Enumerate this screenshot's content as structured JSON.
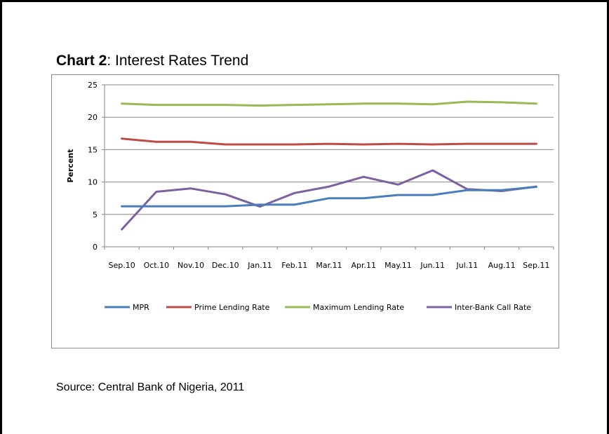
{
  "title": {
    "bold_part": "Chart 2",
    "rest": ": Interest Rates Trend"
  },
  "source": "Source: Central Bank of Nigeria, 2011",
  "chart_data": {
    "type": "line",
    "title": "Chart 2: Interest Rates Trend",
    "xlabel": "",
    "ylabel": "Percent",
    "ylim": [
      0,
      25
    ],
    "yticks": [
      0,
      5,
      10,
      15,
      20,
      25
    ],
    "grid": true,
    "legend_position": "bottom",
    "categories": [
      "Sep.10",
      "Oct.10",
      "Nov.10",
      "Dec.10",
      "Jan.11",
      "Feb.11",
      "Mar.11",
      "Apr.11",
      "May.11",
      "Jun.11",
      "Jul.11",
      "Aug.11",
      "Sep.11"
    ],
    "series": [
      {
        "name": "MPR",
        "color": "#4a7ebb",
        "values": [
          6.25,
          6.25,
          6.25,
          6.25,
          6.5,
          6.5,
          7.5,
          7.5,
          8.0,
          8.0,
          8.75,
          8.75,
          9.25
        ]
      },
      {
        "name": "Prime Lending Rate",
        "color": "#be4b48",
        "values": [
          16.7,
          16.2,
          16.2,
          15.8,
          15.8,
          15.8,
          15.9,
          15.8,
          15.9,
          15.8,
          15.9,
          15.9,
          15.9
        ]
      },
      {
        "name": "Maximum Lending Rate",
        "color": "#98b954",
        "values": [
          22.1,
          21.9,
          21.9,
          21.9,
          21.8,
          21.9,
          22.0,
          22.1,
          22.1,
          22.0,
          22.4,
          22.3,
          22.1
        ]
      },
      {
        "name": "Inter-Bank Call Rate",
        "color": "#7d60a0",
        "values": [
          2.7,
          8.5,
          9.0,
          8.1,
          6.2,
          8.3,
          9.3,
          10.8,
          9.6,
          11.8,
          8.9,
          8.6,
          9.3
        ]
      }
    ]
  }
}
